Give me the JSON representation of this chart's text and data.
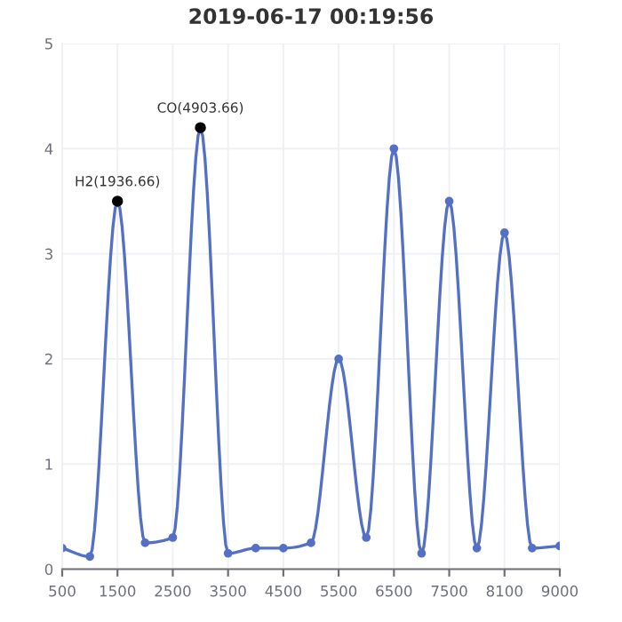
{
  "chart_data": {
    "type": "line",
    "title": "2019-06-17 00:19:56",
    "categories": [
      "500",
      null,
      "1500",
      null,
      "2500",
      null,
      "3500",
      null,
      "4500",
      null,
      "5500",
      null,
      "6500",
      null,
      "7500",
      null,
      "8100",
      null,
      "9000"
    ],
    "series": [
      {
        "color": "#5470c6",
        "values": [
          0.2,
          0.12,
          3.5,
          0.25,
          0.3,
          4.2,
          0.15,
          0.2,
          0.2,
          0.25,
          2.0,
          0.3,
          4.0,
          0.15,
          3.5,
          0.2,
          3.2,
          0.2,
          0.22
        ]
      }
    ],
    "annotations": [
      {
        "text": "H2(1936.66)",
        "x": "1500",
        "y": 3.5
      },
      {
        "text": "CO(4903.66)",
        "y": 4.2
      }
    ],
    "ylim": [
      0,
      5
    ],
    "yticks": [
      0,
      1,
      2,
      3,
      4,
      5
    ],
    "grid": true,
    "marker": "circle",
    "line_style": "solid"
  }
}
